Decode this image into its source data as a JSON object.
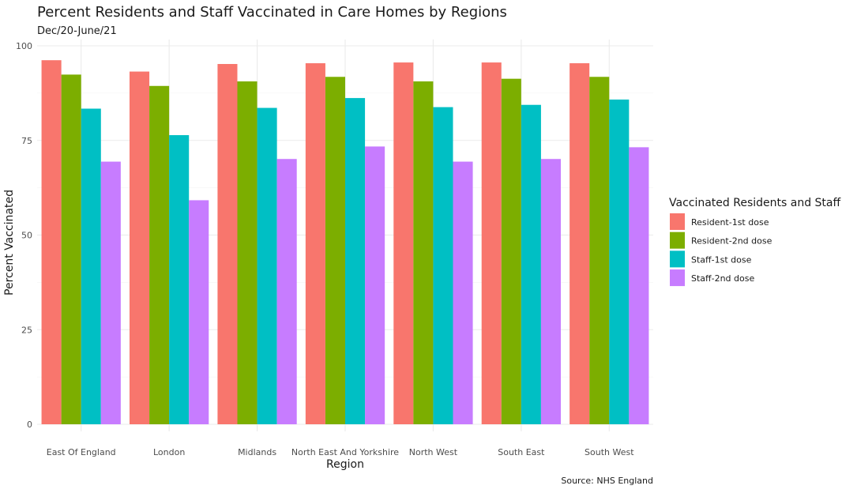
{
  "chart_data": {
    "type": "bar",
    "title": "Percent Residents and Staff Vaccinated in Care Homes by Regions",
    "subtitle": "Dec/20-June/21",
    "xlabel": "Region",
    "ylabel": "Percent Vaccinated",
    "caption": "Source: NHS England",
    "ylim": [
      0,
      100
    ],
    "yticks": [
      0,
      25,
      50,
      75,
      100
    ],
    "grid": true,
    "legend": {
      "title": "Vaccinated Residents and Staff",
      "position": "right"
    },
    "categories": [
      "East Of England",
      "London",
      "Midlands",
      "North East And Yorkshire",
      "North West",
      "South East",
      "South West"
    ],
    "series": [
      {
        "name": "Resident-1st dose",
        "color": "#F8766D",
        "values": [
          96.2,
          93.2,
          95.2,
          95.4,
          95.6,
          95.6,
          95.4
        ]
      },
      {
        "name": "Resident-2nd dose",
        "color": "#7CAE00",
        "values": [
          92.4,
          89.4,
          90.6,
          91.8,
          90.6,
          91.3,
          91.8
        ]
      },
      {
        "name": "Staff-1st dose",
        "color": "#00BFC4",
        "values": [
          83.4,
          76.4,
          83.6,
          86.2,
          83.8,
          84.4,
          85.8
        ]
      },
      {
        "name": "Staff-2nd dose",
        "color": "#C77CFF",
        "values": [
          69.4,
          59.2,
          70.1,
          73.4,
          69.4,
          70.1,
          73.2
        ]
      }
    ]
  }
}
